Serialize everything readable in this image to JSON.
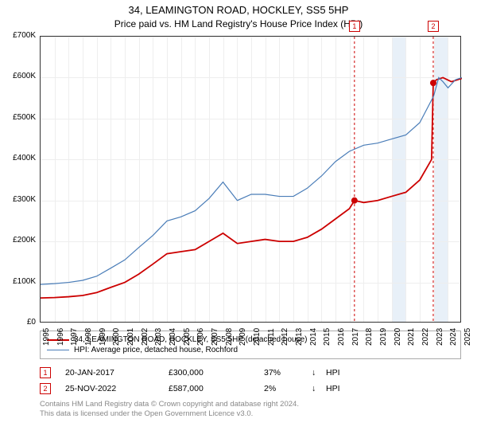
{
  "title": "34, LEAMINGTON ROAD, HOCKLEY, SS5 5HP",
  "subtitle": "Price paid vs. HM Land Registry's House Price Index (HPI)",
  "chart": {
    "type": "line",
    "x_years": [
      1995,
      1996,
      1997,
      1998,
      1999,
      2000,
      2001,
      2002,
      2003,
      2004,
      2005,
      2006,
      2007,
      2008,
      2009,
      2010,
      2011,
      2012,
      2013,
      2014,
      2015,
      2016,
      2017,
      2018,
      2019,
      2020,
      2021,
      2022,
      2023,
      2024,
      2025
    ],
    "ylim": [
      0,
      700000
    ],
    "ytick_step": 100000,
    "ytick_labels": [
      "£0",
      "£100K",
      "£200K",
      "£300K",
      "£400K",
      "£500K",
      "£600K",
      "£700K"
    ],
    "background_color": "#ffffff",
    "grid_color": "#eeeeee",
    "band_color": "#e8f0f8",
    "band_years": [
      [
        2020,
        2021
      ],
      [
        2023,
        2024
      ]
    ],
    "series": [
      {
        "name": "price_paid",
        "color": "#cc0000",
        "width": 1.8,
        "values_k": [
          62,
          63,
          65,
          68,
          75,
          88,
          100,
          120,
          145,
          170,
          175,
          180,
          200,
          220,
          195,
          200,
          205,
          200,
          200,
          210,
          230,
          255,
          280,
          300,
          295,
          300,
          310,
          320,
          350,
          400,
          587,
          595,
          600,
          590,
          598
        ],
        "x_fracs": [
          0,
          0.033,
          0.067,
          0.1,
          0.133,
          0.167,
          0.2,
          0.233,
          0.267,
          0.3,
          0.333,
          0.367,
          0.4,
          0.433,
          0.467,
          0.5,
          0.533,
          0.567,
          0.6,
          0.633,
          0.667,
          0.7,
          0.733,
          0.745,
          0.767,
          0.8,
          0.833,
          0.867,
          0.9,
          0.928,
          0.932,
          0.94,
          0.955,
          0.975,
          1.0
        ]
      },
      {
        "name": "hpi",
        "color": "#4a7db8",
        "width": 1.2,
        "values_k": [
          95,
          97,
          100,
          105,
          115,
          135,
          155,
          185,
          215,
          250,
          260,
          275,
          305,
          345,
          300,
          315,
          315,
          310,
          310,
          330,
          360,
          395,
          420,
          435,
          440,
          450,
          460,
          490,
          555,
          600,
          590,
          575,
          595,
          600
        ],
        "x_fracs": [
          0,
          0.033,
          0.067,
          0.1,
          0.133,
          0.167,
          0.2,
          0.233,
          0.267,
          0.3,
          0.333,
          0.367,
          0.4,
          0.433,
          0.467,
          0.5,
          0.533,
          0.567,
          0.6,
          0.633,
          0.667,
          0.7,
          0.733,
          0.767,
          0.8,
          0.833,
          0.867,
          0.9,
          0.933,
          0.945,
          0.955,
          0.967,
          0.985,
          1.0
        ]
      }
    ],
    "markers": [
      {
        "num": "1",
        "year_frac": 0.745,
        "value_k": 300
      },
      {
        "num": "2",
        "year_frac": 0.932,
        "value_k": 587
      }
    ],
    "vlines": [
      {
        "year_frac": 0.745,
        "color": "#cc0000",
        "dash": "3,3"
      },
      {
        "year_frac": 0.932,
        "color": "#cc0000",
        "dash": "3,3"
      }
    ]
  },
  "legend": {
    "items": [
      {
        "color": "#cc0000",
        "width": 2,
        "label": "34, LEAMINGTON ROAD, HOCKLEY, SS5 5HP (detached house)"
      },
      {
        "color": "#4a7db8",
        "width": 1.5,
        "label": "HPI: Average price, detached house, Rochford"
      }
    ]
  },
  "transactions": [
    {
      "num": "1",
      "date": "20-JAN-2017",
      "price": "£300,000",
      "delta": "37%",
      "arrow": "↓",
      "vs": "HPI"
    },
    {
      "num": "2",
      "date": "25-NOV-2022",
      "price": "£587,000",
      "delta": "2%",
      "arrow": "↓",
      "vs": "HPI"
    }
  ],
  "footer": {
    "line1": "Contains HM Land Registry data © Crown copyright and database right 2024.",
    "line2": "This data is licensed under the Open Government Licence v3.0."
  },
  "col_widths": {
    "date": 130,
    "price": 120,
    "delta": 60,
    "arrow": 18,
    "vs": 40
  }
}
